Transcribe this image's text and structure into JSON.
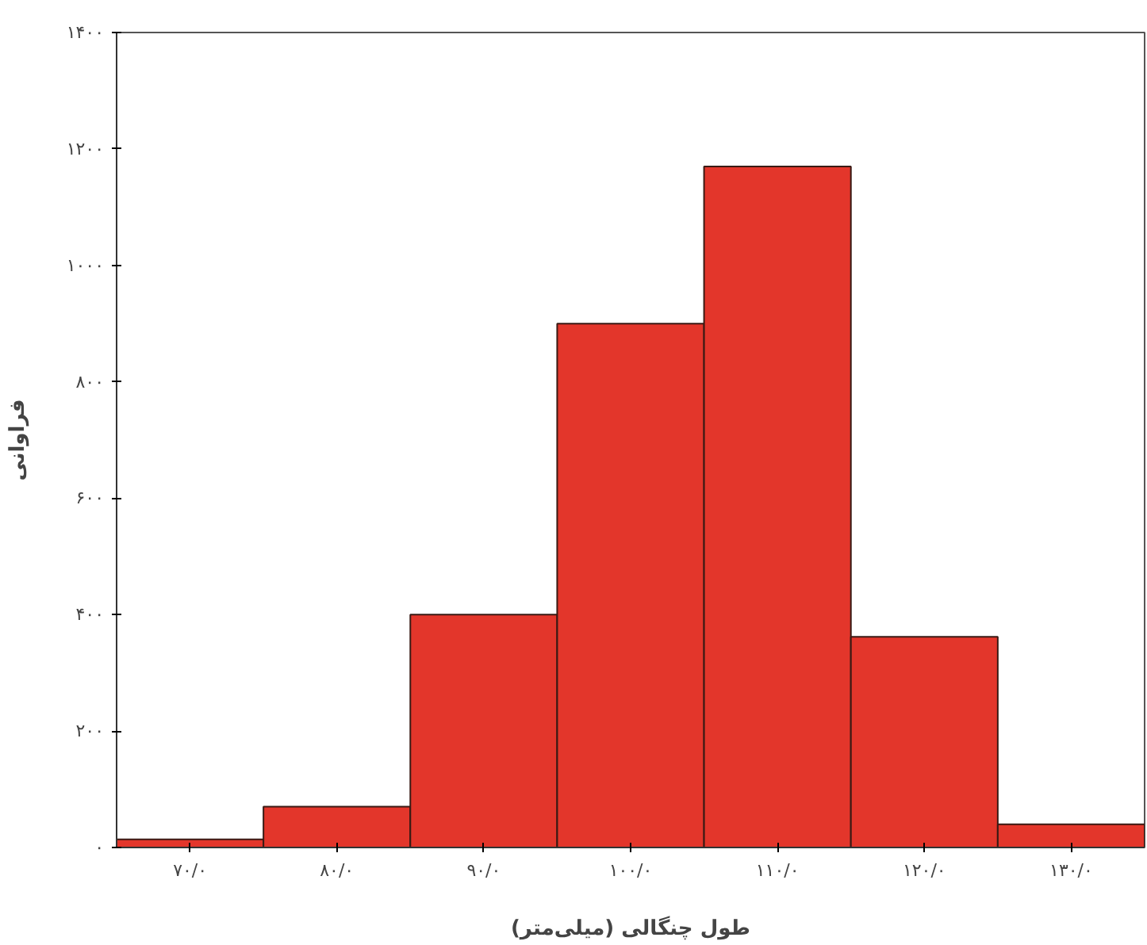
{
  "chart_data": {
    "type": "bar",
    "xlabel": "طول چنگالی (میلی‌متر)",
    "ylabel": "فراوانی",
    "categories": [
      "۷۰/۰",
      "۸۰/۰",
      "۹۰/۰",
      "۱۰۰/۰",
      "۱۱۰/۰",
      "۱۲۰/۰",
      "۱۳۰/۰"
    ],
    "values": [
      14,
      70,
      400,
      900,
      1170,
      362,
      40
    ],
    "color": "#e3362b",
    "ylim": [
      0,
      1400
    ],
    "yticks": [
      {
        "value": 0,
        "label": "۰"
      },
      {
        "value": 200,
        "label": "۲۰۰"
      },
      {
        "value": 400,
        "label": "۴۰۰"
      },
      {
        "value": 600,
        "label": "۶۰۰"
      },
      {
        "value": 800,
        "label": "۸۰۰"
      },
      {
        "value": 1000,
        "label": "۱۰۰۰"
      },
      {
        "value": 1200,
        "label": "۱۲۰۰"
      },
      {
        "value": 1400,
        "label": "۱۴۰۰"
      }
    ],
    "grid": false
  }
}
